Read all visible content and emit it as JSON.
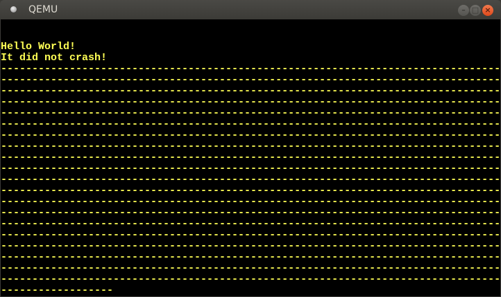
{
  "window": {
    "title": "QEMU",
    "buttons": {
      "minimize": "–",
      "maximize": "□",
      "close": "×"
    }
  },
  "colors": {
    "text": "#ffff55",
    "background": "#000000",
    "close_button": "#e95420"
  },
  "screen": {
    "lines": [
      "",
      "",
      "Hello World!",
      "It did not crash!",
      "--------------------------------------------------------------------------------",
      "--------------------------------------------------------------------------------",
      "--------------------------------------------------------------------------------",
      "--------------------------------------------------------------------------------",
      "--------------------------------------------------------------------------------",
      "--------------------------------------------------------------------------------",
      "--------------------------------------------------------------------------------",
      "--------------------------------------------------------------------------------",
      "--------------------------------------------------------------------------------",
      "--------------------------------------------------------------------------------",
      "--------------------------------------------------------------------------------",
      "--------------------------------------------------------------------------------",
      "--------------------------------------------------------------------------------",
      "--------------------------------------------------------------------------------",
      "--------------------------------------------------------------------------------",
      "--------------------------------------------------------------------------------",
      "--------------------------------------------------------------------------------",
      "--------------------------------------------------------------------------------",
      "--------------------------------------------------------------------------------",
      "--------------------------------------------------------------------------------",
      "------------------"
    ]
  }
}
